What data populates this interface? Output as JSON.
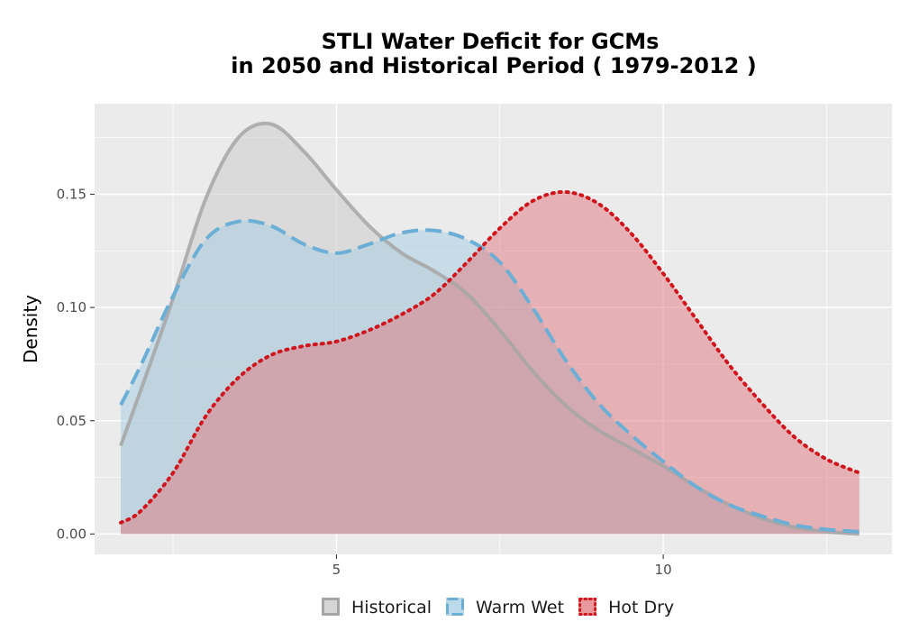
{
  "chart_data": {
    "type": "area",
    "title_lines": [
      "STLI  Water Deficit for GCMs",
      "in 2050 and Historical Period ( 1979-2012 )"
    ],
    "xlabel": "",
    "ylabel": "Density",
    "xlim": [
      1.3,
      13.5
    ],
    "ylim": [
      -0.009,
      0.19
    ],
    "x_ticks": [
      5,
      10
    ],
    "x_tick_labels": [
      "5",
      "10"
    ],
    "y_ticks": [
      0.0,
      0.05,
      0.1,
      0.15
    ],
    "y_tick_labels": [
      "0.00",
      "0.05",
      "0.10",
      "0.15"
    ],
    "grid": true,
    "legend_position": "bottom",
    "x": [
      1.7,
      2.0,
      2.5,
      3.0,
      3.5,
      4.0,
      4.5,
      5.0,
      5.5,
      6.0,
      6.5,
      7.0,
      7.5,
      8.0,
      8.5,
      9.0,
      9.5,
      10.0,
      10.5,
      11.0,
      11.5,
      12.0,
      12.5,
      13.0
    ],
    "series": [
      {
        "name": "Historical",
        "line_color": "#a6a6a6",
        "fill_color": "#cccccc",
        "fill_opacity": 0.55,
        "dash": "solid",
        "values": [
          0.039,
          0.063,
          0.104,
          0.148,
          0.175,
          0.181,
          0.169,
          0.152,
          0.136,
          0.124,
          0.116,
          0.106,
          0.09,
          0.072,
          0.057,
          0.046,
          0.038,
          0.03,
          0.021,
          0.013,
          0.007,
          0.003,
          0.001,
          0.0
        ]
      },
      {
        "name": "Warm Wet",
        "line_color": "#6baed6",
        "fill_color": "#a6cee3",
        "fill_opacity": 0.5,
        "dash": "dashed",
        "values": [
          0.057,
          0.074,
          0.105,
          0.13,
          0.138,
          0.136,
          0.128,
          0.124,
          0.128,
          0.133,
          0.134,
          0.13,
          0.12,
          0.1,
          0.077,
          0.058,
          0.044,
          0.032,
          0.021,
          0.013,
          0.008,
          0.004,
          0.002,
          0.001
        ]
      },
      {
        "name": "Hot Dry",
        "line_color": "#d0151d",
        "fill_color": "#e0777d",
        "fill_opacity": 0.5,
        "dash": "dotted",
        "values": [
          0.005,
          0.01,
          0.027,
          0.052,
          0.069,
          0.079,
          0.083,
          0.085,
          0.09,
          0.097,
          0.106,
          0.12,
          0.135,
          0.147,
          0.151,
          0.146,
          0.133,
          0.115,
          0.095,
          0.075,
          0.058,
          0.043,
          0.033,
          0.027
        ]
      }
    ]
  }
}
